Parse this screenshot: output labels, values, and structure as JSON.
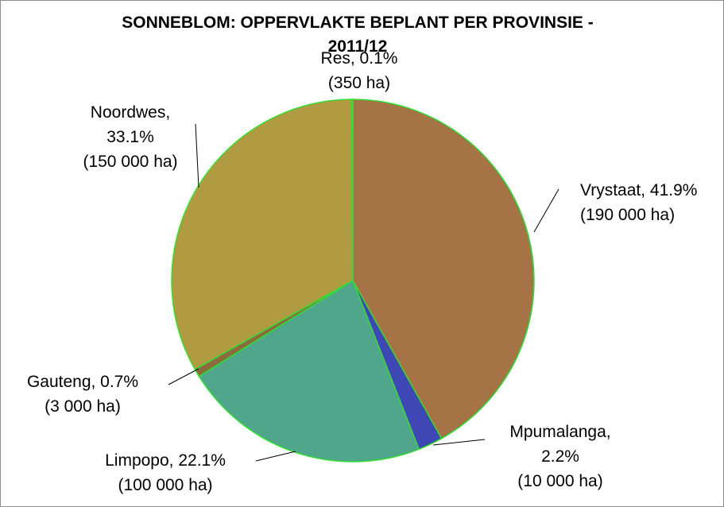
{
  "chart_data": {
    "type": "pie",
    "title": "SONNEBLOM: OPPERVLAKTE BEPLANT PER PROVINSIE - 2011/12",
    "slices": [
      {
        "name": "Vrystaat",
        "percent": 41.9,
        "percent_label": "41.9%",
        "area": "(190 000 ha)",
        "color": "#a67346"
      },
      {
        "name": "Mpumalanga",
        "percent": 2.2,
        "percent_label": "2.2%",
        "area": "(10 000 ha)",
        "color": "#3f47b5"
      },
      {
        "name": "Limpopo",
        "percent": 22.1,
        "percent_label": "22.1%",
        "area": "(100 000 ha)",
        "color": "#4fa68a"
      },
      {
        "name": "Gauteng",
        "percent": 0.7,
        "percent_label": "0.7%",
        "area": "(3 000 ha)",
        "color": "#8b6a3e"
      },
      {
        "name": "Noordwes",
        "percent": 33.1,
        "percent_label": "33.1%",
        "area": "(150 000 ha)",
        "color": "#b09a42"
      },
      {
        "name": "Res",
        "percent": 0.1,
        "percent_label": "0.1%",
        "area": "(350 ha)",
        "color": "#9a7a56"
      }
    ],
    "slice_border_color": "#33dd33",
    "legend": "none"
  }
}
